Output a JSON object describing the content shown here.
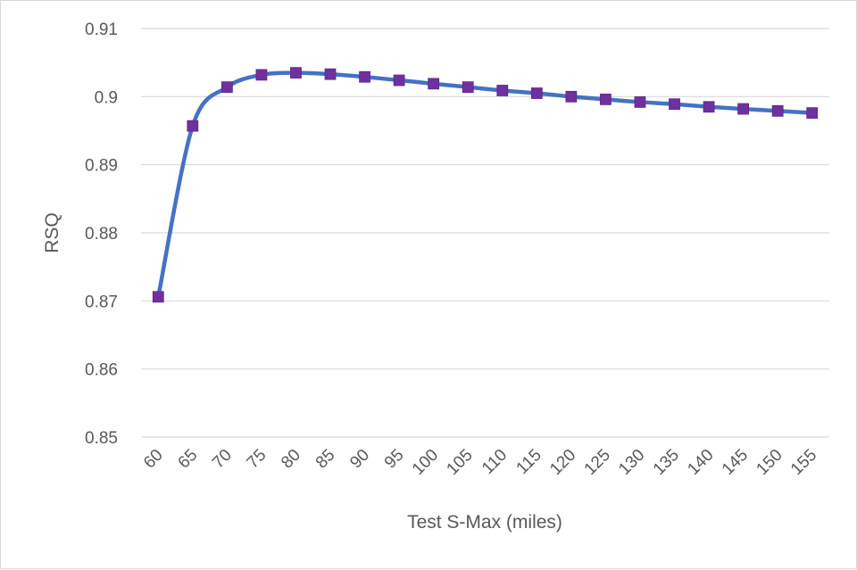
{
  "chart_data": {
    "type": "line",
    "title": "",
    "xlabel": "Test S-Max (miles)",
    "ylabel": "RSQ",
    "ylim": [
      0.85,
      0.91
    ],
    "yticks": [
      "0.85",
      "0.86",
      "0.87",
      "0.88",
      "0.89",
      "0.9",
      "0.91"
    ],
    "grid": true,
    "legend": "none",
    "line_color": "#4472c4",
    "marker_color": "#7030a0",
    "marker": "square",
    "categories": [
      "60",
      "65",
      "70",
      "75",
      "80",
      "85",
      "90",
      "95",
      "100",
      "105",
      "110",
      "115",
      "120",
      "125",
      "130",
      "135",
      "140",
      "145",
      "150",
      "155"
    ],
    "series": [
      {
        "values": [
          0.8706,
          0.8957,
          0.9014,
          0.9032,
          0.9035,
          0.9033,
          0.9029,
          0.9024,
          0.9019,
          0.9014,
          0.9009,
          0.9005,
          0.9,
          0.8996,
          0.8992,
          0.8989,
          0.8985,
          0.8982,
          0.8979,
          0.8976
        ]
      }
    ]
  }
}
